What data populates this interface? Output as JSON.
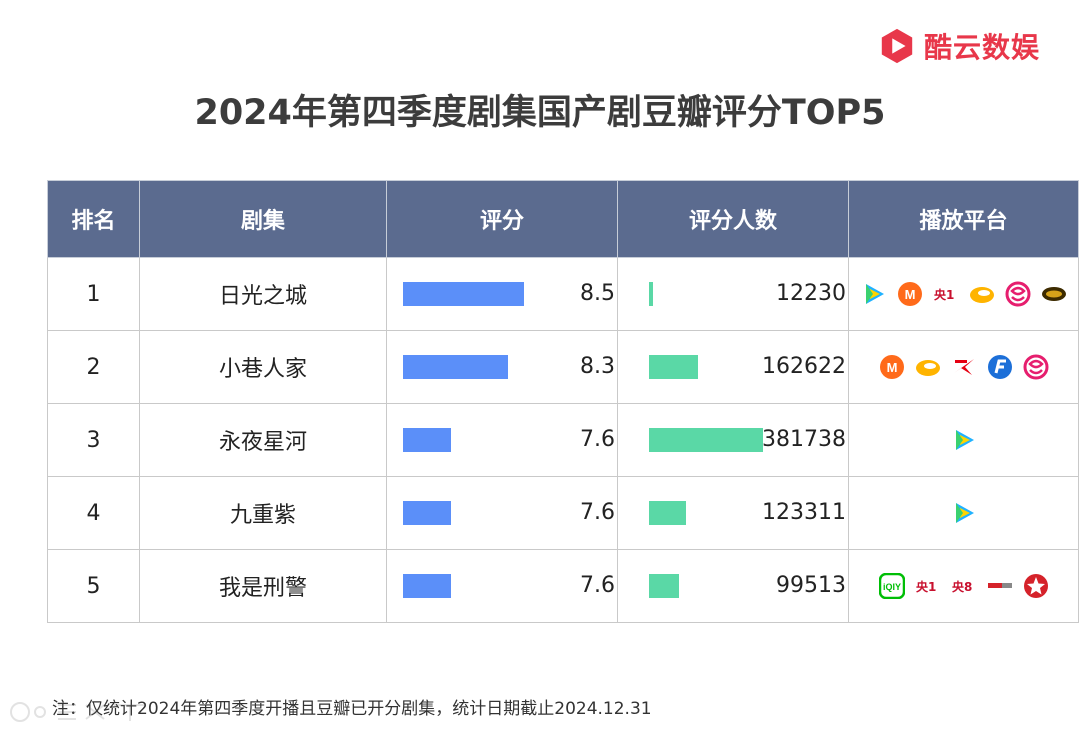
{
  "brand": {
    "name": "酷云数娱",
    "color": "#e8374a"
  },
  "title": "2024年第四季度剧集国产剧豆瓣评分TOP5",
  "table": {
    "headers": [
      "排名",
      "剧集",
      "评分",
      "评分人数",
      "播放平台"
    ],
    "header_bg": "#5b6b8f",
    "rows": [
      {
        "rank": "1",
        "name": "日光之城",
        "score": 8.5,
        "score_label": "8.5",
        "votes": 12230,
        "votes_label": "12230",
        "platforms": [
          "tencent-video-icon",
          "mango-tv-icon",
          "cctv1-icon",
          "gold-eagle-icon",
          "dragon-tv-icon",
          "jiangsu-tv-icon"
        ]
      },
      {
        "rank": "2",
        "name": "小巷人家",
        "score": 8.3,
        "score_label": "8.3",
        "votes": 162622,
        "votes_label": "162622",
        "platforms": [
          "mango-tv-icon",
          "gold-eagle-icon",
          "guangdong-tv-icon",
          "zhejiang-tv-icon",
          "dragon-tv-icon"
        ]
      },
      {
        "rank": "3",
        "name": "永夜星河",
        "score": 7.6,
        "score_label": "7.6",
        "votes": 381738,
        "votes_label": "381738",
        "platforms": [
          "tencent-video-icon"
        ]
      },
      {
        "rank": "4",
        "name": "九重紫",
        "score": 7.6,
        "score_label": "7.6",
        "votes": 123311,
        "votes_label": "123311",
        "platforms": [
          "tencent-video-icon"
        ]
      },
      {
        "rank": "5",
        "name": "我是刑警",
        "score": 7.6,
        "score_label": "7.6",
        "votes": 99513,
        "votes_label": "99513",
        "platforms": [
          "iqiyi-icon",
          "cctv1-icon",
          "cctv8-icon",
          "btv-icon",
          "dongfang-star-icon"
        ]
      }
    ]
  },
  "note": "注：仅统计2024年第四季度开播且豆瓣已开分剧集，统计日期截止2024.12.31",
  "colors": {
    "score_bar": "#5b8ff9",
    "votes_bar": "#5ad8a6"
  },
  "chart_data": {
    "type": "table",
    "title": "2024年第四季度剧集国产剧豆瓣评分TOP5",
    "columns": [
      "排名",
      "剧集",
      "评分",
      "评分人数",
      "播放平台"
    ],
    "categories": [
      "日光之城",
      "小巷人家",
      "永夜星河",
      "九重紫",
      "我是刑警"
    ],
    "series": [
      {
        "name": "评分",
        "values": [
          8.5,
          8.3,
          7.6,
          7.6,
          7.6
        ]
      },
      {
        "name": "评分人数",
        "values": [
          12230,
          162622,
          381738,
          123311,
          99513
        ]
      }
    ]
  }
}
